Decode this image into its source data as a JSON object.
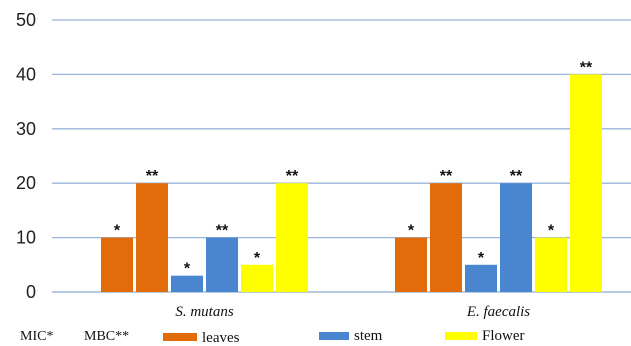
{
  "chart_data": {
    "type": "bar",
    "title": "",
    "xlabel": "",
    "ylabel": "",
    "ylim": [
      0,
      50
    ],
    "yticks": [
      0,
      10,
      20,
      30,
      40,
      50
    ],
    "grid": true,
    "legend_position": "bottom",
    "categories": [
      "S. mutans",
      "E. faecalis"
    ],
    "bar_order": [
      {
        "series": "leaves",
        "type": "MIC*"
      },
      {
        "series": "leaves",
        "type": "MBC**"
      },
      {
        "series": "stem",
        "type": "MIC*"
      },
      {
        "series": "stem",
        "type": "MBC**"
      },
      {
        "series": "Flower",
        "type": "MIC*"
      },
      {
        "series": "Flower",
        "type": "MBC**"
      }
    ],
    "series": [
      {
        "name": "leaves",
        "color": "#e36c0a",
        "values": [
          [
            10,
            20
          ],
          [
            10,
            20
          ]
        ]
      },
      {
        "name": "stem",
        "color": "#4a86d0",
        "values": [
          [
            3,
            10
          ],
          [
            5,
            20
          ]
        ]
      },
      {
        "name": "Flower",
        "color": "#ffff00",
        "values": [
          [
            5,
            20
          ],
          [
            10,
            40
          ]
        ]
      }
    ],
    "markers": {
      "MIC": "*",
      "MBC": "**"
    },
    "legend_notes": [
      "MIC*",
      "MBC**"
    ]
  }
}
